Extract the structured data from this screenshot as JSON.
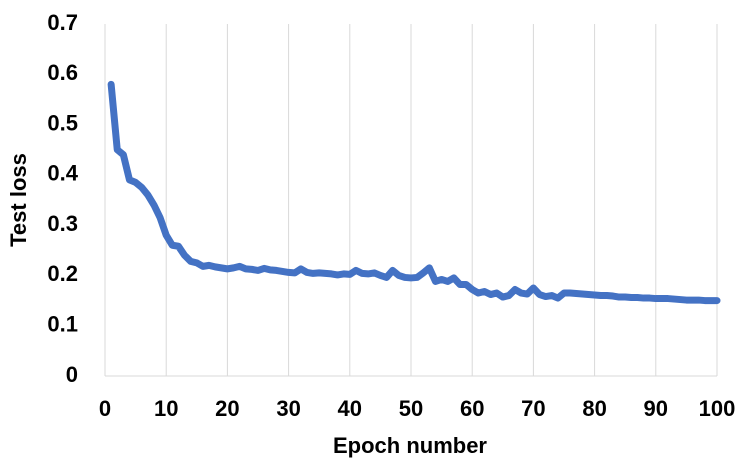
{
  "chart_data": {
    "type": "line",
    "x_label": "Epoch number",
    "y_label": "Test loss",
    "color": "#4472c4",
    "x": [
      1,
      2,
      3,
      4,
      5,
      6,
      7,
      8,
      9,
      10,
      11,
      12,
      13,
      14,
      15,
      16,
      17,
      18,
      19,
      20,
      21,
      22,
      23,
      24,
      25,
      26,
      27,
      28,
      29,
      30,
      31,
      32,
      33,
      34,
      35,
      36,
      37,
      38,
      39,
      40,
      41,
      42,
      43,
      44,
      45,
      46,
      47,
      48,
      49,
      50,
      51,
      52,
      53,
      54,
      55,
      56,
      57,
      58,
      59,
      60,
      61,
      62,
      63,
      64,
      65,
      66,
      67,
      68,
      69,
      70,
      71,
      72,
      73,
      74,
      75,
      76,
      77,
      78,
      79,
      80,
      81,
      82,
      83,
      84,
      85,
      86,
      87,
      88,
      89,
      90,
      91,
      92,
      93,
      94,
      95,
      96,
      97,
      98,
      99,
      100
    ],
    "values": [
      0.58,
      0.45,
      0.44,
      0.39,
      0.385,
      0.375,
      0.36,
      0.34,
      0.315,
      0.28,
      0.26,
      0.258,
      0.24,
      0.228,
      0.225,
      0.218,
      0.22,
      0.217,
      0.215,
      0.213,
      0.215,
      0.218,
      0.213,
      0.212,
      0.21,
      0.214,
      0.211,
      0.21,
      0.208,
      0.206,
      0.205,
      0.213,
      0.206,
      0.204,
      0.205,
      0.204,
      0.203,
      0.201,
      0.203,
      0.202,
      0.21,
      0.204,
      0.203,
      0.205,
      0.2,
      0.196,
      0.21,
      0.2,
      0.196,
      0.195,
      0.196,
      0.205,
      0.215,
      0.188,
      0.192,
      0.188,
      0.195,
      0.182,
      0.182,
      0.172,
      0.165,
      0.168,
      0.162,
      0.165,
      0.157,
      0.16,
      0.172,
      0.165,
      0.163,
      0.175,
      0.162,
      0.158,
      0.16,
      0.155,
      0.165,
      0.165,
      0.164,
      0.163,
      0.162,
      0.161,
      0.16,
      0.16,
      0.159,
      0.157,
      0.157,
      0.156,
      0.156,
      0.155,
      0.155,
      0.154,
      0.154,
      0.154,
      0.153,
      0.152,
      0.151,
      0.151,
      0.151,
      0.15,
      0.15,
      0.15
    ],
    "xlim": [
      0,
      100
    ],
    "ylim": [
      0,
      0.7
    ],
    "xticks": [
      0,
      10,
      20,
      30,
      40,
      50,
      60,
      70,
      80,
      90,
      100
    ],
    "yticks": [
      0,
      0.1,
      0.2,
      0.3,
      0.4,
      0.5,
      0.6,
      0.7
    ],
    "grid": "x"
  }
}
